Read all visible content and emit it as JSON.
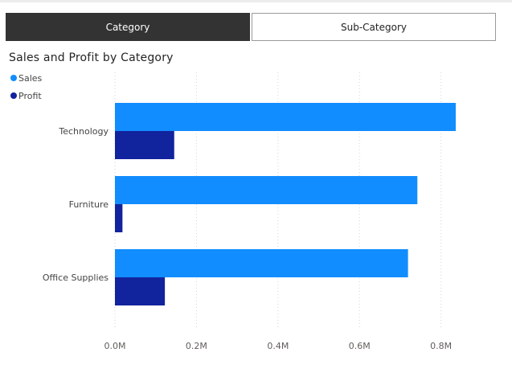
{
  "tabs": [
    {
      "label": "Category",
      "active": true
    },
    {
      "label": "Sub-Category",
      "active": false
    }
  ],
  "chart_data": {
    "type": "bar",
    "orientation": "horizontal",
    "title": "Sales and Profit by Category",
    "categories": [
      "Technology",
      "Furniture",
      "Office Supplies"
    ],
    "series": [
      {
        "name": "Sales",
        "color": "#118dff",
        "values": [
          836154,
          741999,
          719047
        ]
      },
      {
        "name": "Profit",
        "color": "#12239e",
        "values": [
          145455,
          18451,
          122491
        ]
      }
    ],
    "xlim": [
      0,
      900000
    ],
    "xticks": [
      0,
      200000,
      400000,
      600000,
      800000
    ],
    "xtick_labels": [
      "0.0M",
      "0.2M",
      "0.4M",
      "0.6M",
      "0.8M"
    ],
    "grid": true,
    "legend_position": "top-left"
  }
}
